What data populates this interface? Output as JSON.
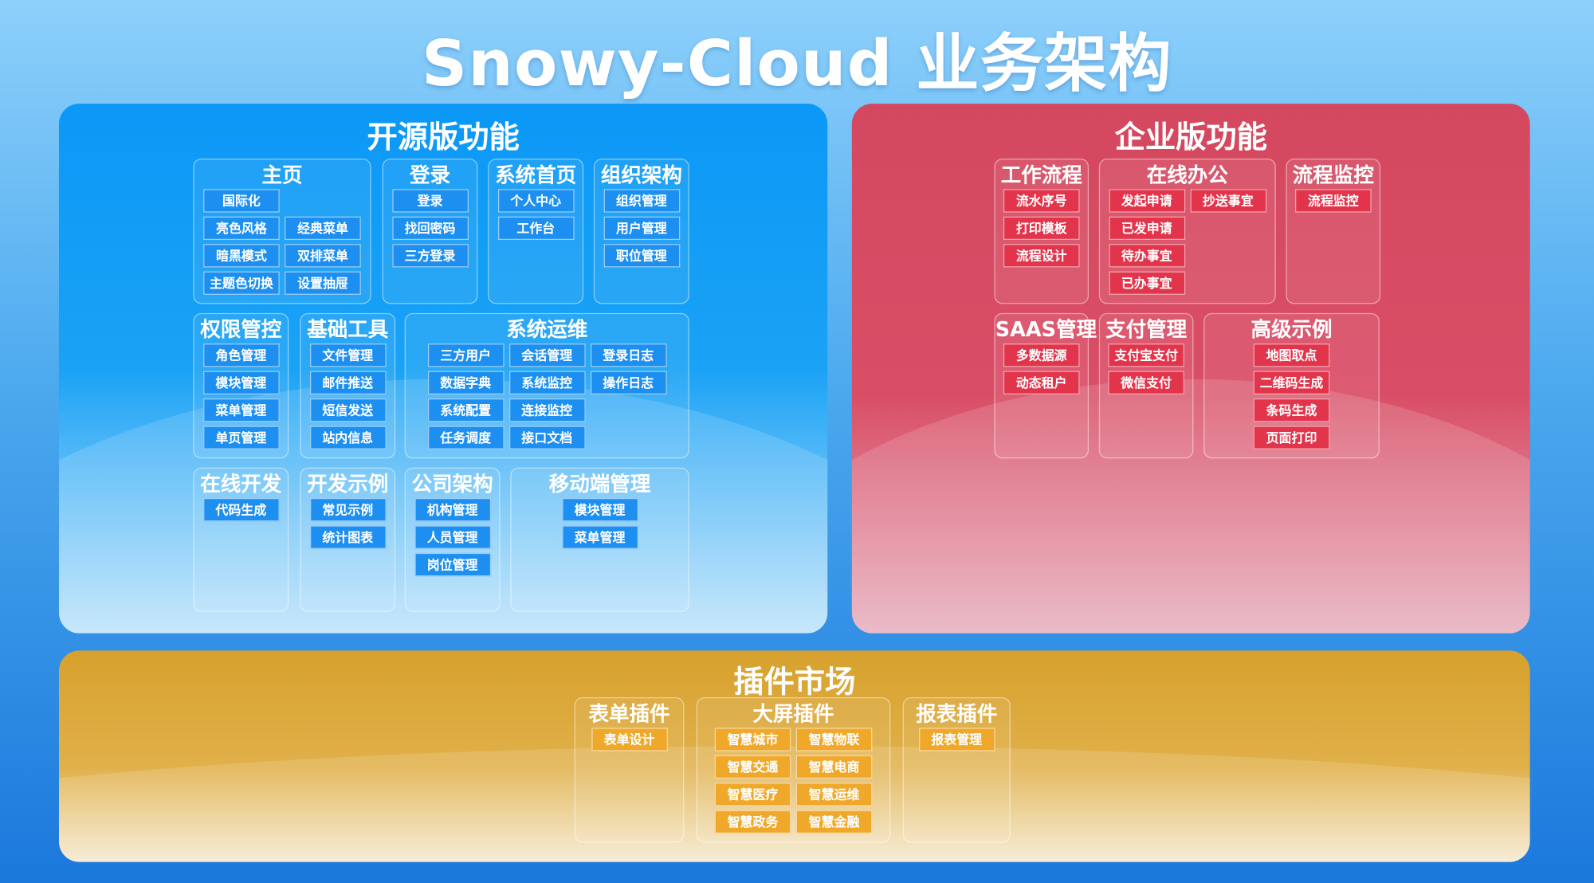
{
  "title": "Snowy-Cloud 业务架构",
  "colors": {
    "open_source": "#0b98f6",
    "enterprise": "#d4485f",
    "plugins": "#d7a12c"
  },
  "open_source": {
    "title": "开源版功能",
    "groups": [
      {
        "title": "主页",
        "rows": [
          [
            "国际化"
          ],
          [
            "亮色风格",
            "经典菜单"
          ],
          [
            "暗黑模式",
            "双排菜单"
          ],
          [
            "主题色切换",
            "设置抽屉"
          ]
        ]
      },
      {
        "title": "登录",
        "rows": [
          [
            "登录"
          ],
          [
            "找回密码"
          ],
          [
            "三方登录"
          ]
        ]
      },
      {
        "title": "系统首页",
        "rows": [
          [
            "个人中心"
          ],
          [
            "工作台"
          ]
        ]
      },
      {
        "title": "组织架构",
        "rows": [
          [
            "组织管理"
          ],
          [
            "用户管理"
          ],
          [
            "职位管理"
          ]
        ]
      },
      {
        "title": "权限管控",
        "rows": [
          [
            "角色管理"
          ],
          [
            "模块管理"
          ],
          [
            "菜单管理"
          ],
          [
            "单页管理"
          ]
        ]
      },
      {
        "title": "基础工具",
        "rows": [
          [
            "文件管理"
          ],
          [
            "邮件推送"
          ],
          [
            "短信发送"
          ],
          [
            "站内信息"
          ]
        ]
      },
      {
        "title": "系统运维",
        "rows": [
          [
            "三方用户",
            "会话管理",
            "登录日志"
          ],
          [
            "数据字典",
            "系统监控",
            "操作日志"
          ],
          [
            "系统配置",
            "连接监控"
          ],
          [
            "任务调度",
            "接口文档"
          ]
        ]
      },
      {
        "title": "在线开发",
        "rows": [
          [
            "代码生成"
          ]
        ]
      },
      {
        "title": "开发示例",
        "rows": [
          [
            "常见示例"
          ],
          [
            "统计图表"
          ]
        ]
      },
      {
        "title": "公司架构",
        "rows": [
          [
            "机构管理"
          ],
          [
            "人员管理"
          ],
          [
            "岗位管理"
          ]
        ]
      },
      {
        "title": "移动端管理",
        "rows": [
          [
            "模块管理"
          ],
          [
            "菜单管理"
          ]
        ]
      }
    ]
  },
  "enterprise": {
    "title": "企业版功能",
    "groups": [
      {
        "title": "工作流程",
        "rows": [
          [
            "流水序号"
          ],
          [
            "打印模板"
          ],
          [
            "流程设计"
          ]
        ]
      },
      {
        "title": "在线办公",
        "rows": [
          [
            "发起申请",
            "抄送事宜"
          ],
          [
            "已发申请"
          ],
          [
            "待办事宜"
          ],
          [
            "已办事宜"
          ]
        ]
      },
      {
        "title": "流程监控",
        "rows": [
          [
            "流程监控"
          ]
        ]
      },
      {
        "title": "SAAS管理",
        "rows": [
          [
            "多数据源"
          ],
          [
            "动态租户"
          ]
        ]
      },
      {
        "title": "支付管理",
        "rows": [
          [
            "支付宝支付"
          ],
          [
            "微信支付"
          ]
        ]
      },
      {
        "title": "高级示例",
        "rows": [
          [
            "地图取点"
          ],
          [
            "二维码生成"
          ],
          [
            "条码生成"
          ],
          [
            "页面打印"
          ]
        ]
      }
    ]
  },
  "plugins": {
    "title": "插件市场",
    "groups": [
      {
        "title": "表单插件",
        "rows": [
          [
            "表单设计"
          ]
        ]
      },
      {
        "title": "大屏插件",
        "rows": [
          [
            "智慧城市",
            "智慧物联"
          ],
          [
            "智慧交通",
            "智慧电商"
          ],
          [
            "智慧医疗",
            "智慧运维"
          ],
          [
            "智慧政务",
            "智慧金融"
          ]
        ]
      },
      {
        "title": "报表插件",
        "rows": [
          [
            "报表管理"
          ]
        ]
      }
    ]
  }
}
